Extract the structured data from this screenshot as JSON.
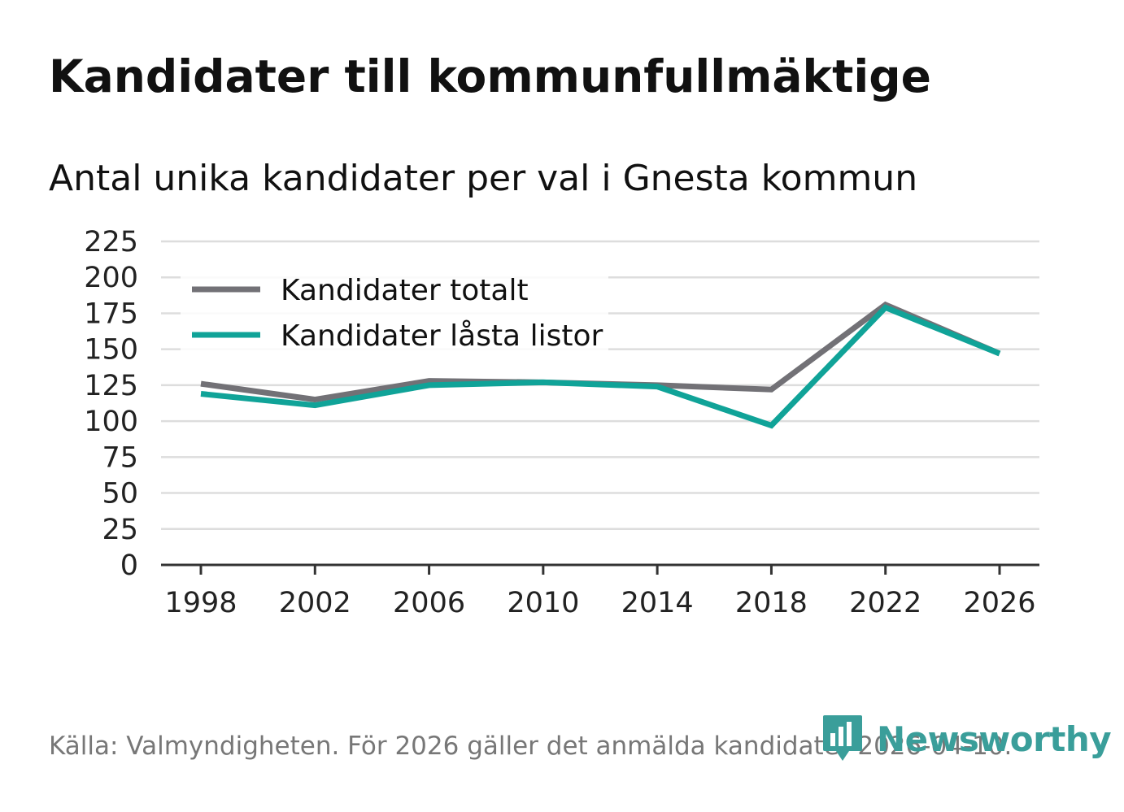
{
  "title": "Kandidater till kommunfullmäktige",
  "subtitle": "Antal unika kandidater per val i Gnesta kommun",
  "source": "Källa: Valmyndigheten. För 2026 gäller det anmälda kandidater 2026-04-10.",
  "brand": {
    "name": "Newsworthy",
    "color": "#3a9e9a",
    "icon": "bar-chart-speech-bubble-icon"
  },
  "chart_data": {
    "type": "line",
    "x": [
      "1998",
      "2002",
      "2006",
      "2010",
      "2014",
      "2018",
      "2022",
      "2026"
    ],
    "ylim": [
      0,
      225
    ],
    "yticks": [
      "0",
      "25",
      "50",
      "75",
      "100",
      "125",
      "150",
      "175",
      "200",
      "225"
    ],
    "grid": true,
    "legend_position": "top-left",
    "series": [
      {
        "name": "Kandidater totalt",
        "color": "#727176",
        "values": [
          126,
          115,
          128,
          127,
          125,
          122,
          181,
          147
        ]
      },
      {
        "name": "Kandidater låsta listor",
        "color": "#10a398",
        "values": [
          119,
          111,
          125,
          127,
          124,
          97,
          179,
          147
        ]
      }
    ]
  }
}
